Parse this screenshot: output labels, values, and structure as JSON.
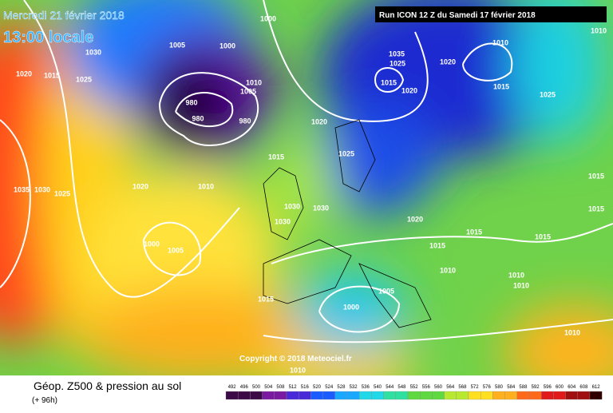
{
  "header": {
    "date": "Mercredi 21 février 2018",
    "time": "13:00 locale",
    "run": "Run ICON 12 Z du Samedi 17 février 2018",
    "copyright": "Copyright © 2018 Meteociel.fr"
  },
  "footer": {
    "title": "Géop. Z500 & pression au sol",
    "subtitle": "(+ 96h)",
    "levels": [
      492,
      496,
      500,
      504,
      508,
      512,
      516,
      520,
      524,
      528,
      532,
      536,
      540,
      544,
      548,
      552,
      556,
      560,
      564,
      568,
      572,
      576,
      580,
      584,
      588,
      592,
      596,
      600,
      604,
      608,
      612
    ]
  },
  "isobars": [
    "1030",
    "1020",
    "1015",
    "1025",
    "1005",
    "1000",
    "1000",
    "1010",
    "1005",
    "980",
    "980",
    "980",
    "1020",
    "1025",
    "1015",
    "1020",
    "1010",
    "1035",
    "1030",
    "1025",
    "1030",
    "1030",
    "1030",
    "1000",
    "1005",
    "1020",
    "1015",
    "1015",
    "1010",
    "1005",
    "1000",
    "1015",
    "1010",
    "1010",
    "1035",
    "1025",
    "1020",
    "1015",
    "1020",
    "1015",
    "1025",
    "1015",
    "1015",
    "1015",
    "1010",
    "1010",
    "1010",
    "1010"
  ]
}
